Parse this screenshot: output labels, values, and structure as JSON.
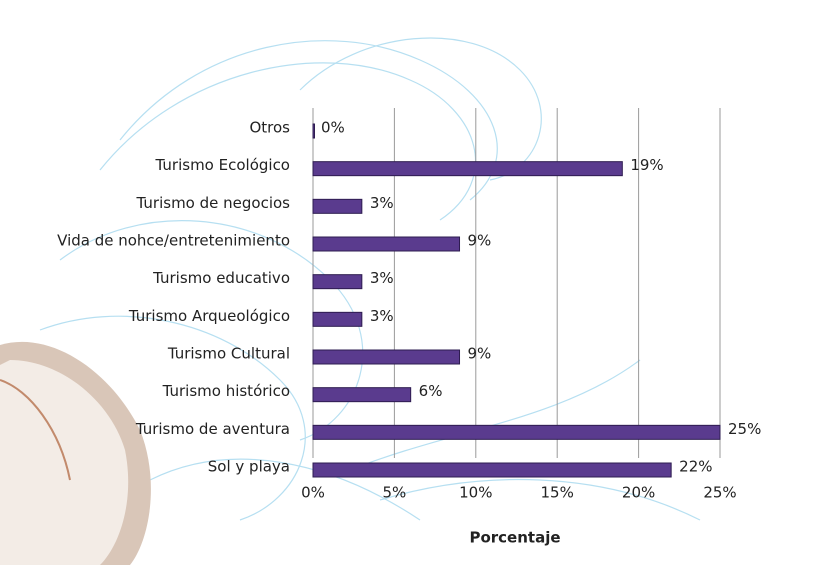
{
  "chart_data": {
    "type": "bar",
    "orientation": "horizontal",
    "x_label": "Porcentaje",
    "categories": [
      "Otros",
      "Turismo Ecológico",
      "Turismo de negocios",
      "Vida de nohce/entretenimiento",
      "Turismo educativo",
      "Turismo Arqueológico",
      "Turismo Cultural",
      "Turismo histórico",
      "Turismo de aventura",
      "Sol y playa"
    ],
    "values": [
      0,
      19,
      3,
      9,
      3,
      3,
      9,
      6,
      25,
      22
    ],
    "value_labels": [
      "0%",
      "19%",
      "3%",
      "9%",
      "3%",
      "3%",
      "9%",
      "6%",
      "25%",
      "22%"
    ],
    "color": "#5a3b8e",
    "xlim": [
      0,
      25
    ],
    "xticks": [
      {
        "value": 0,
        "label": "0%"
      },
      {
        "value": 5,
        "label": "5%"
      },
      {
        "value": 10,
        "label": "10%"
      },
      {
        "value": 15,
        "label": "15%"
      },
      {
        "value": 20,
        "label": "20%"
      },
      {
        "value": 25,
        "label": "25%"
      }
    ],
    "grid": true
  }
}
